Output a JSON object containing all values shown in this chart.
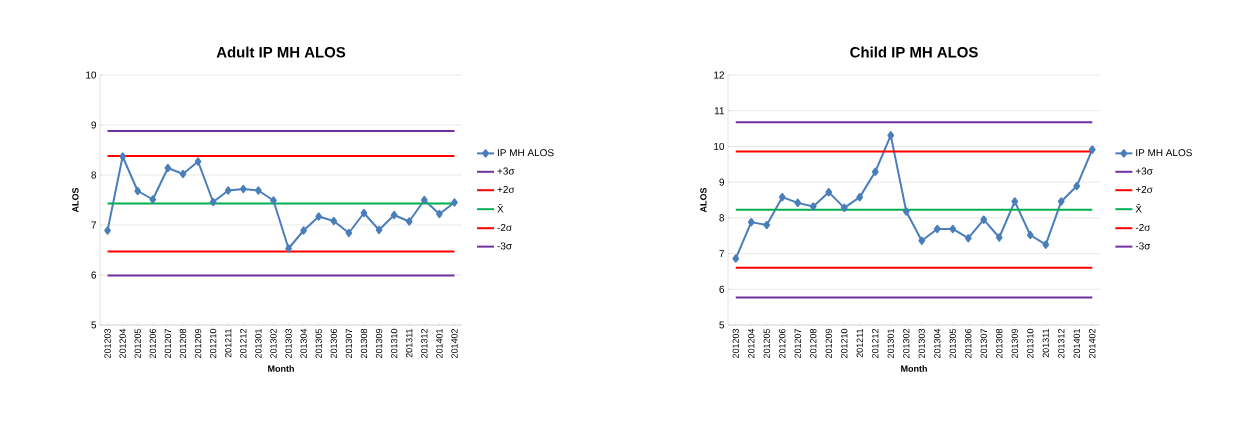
{
  "chart_data": [
    {
      "type": "line",
      "title": "Adult IP MH ALOS",
      "xlabel": "Month",
      "ylabel": "ALOS",
      "categories": [
        "201203",
        "201204",
        "201205",
        "201206",
        "201207",
        "201208",
        "201209",
        "201210",
        "201211",
        "201212",
        "201301",
        "201302",
        "201303",
        "201304",
        "201305",
        "201306",
        "201307",
        "201308",
        "201309",
        "201310",
        "201311",
        "201312",
        "201401",
        "201402"
      ],
      "ylim": [
        5,
        10
      ],
      "yticks": [
        5,
        6,
        7,
        8,
        9,
        10
      ],
      "grid": "y",
      "legend": "right",
      "series": [
        {
          "name": "IP MH ALOS",
          "color": "#4a7ebb",
          "marker": "diamond",
          "values": [
            6.89,
            8.37,
            7.68,
            7.51,
            8.14,
            8.02,
            8.27,
            7.46,
            7.69,
            7.72,
            7.69,
            7.49,
            6.53,
            6.89,
            7.17,
            7.08,
            6.84,
            7.24,
            6.9,
            7.2,
            7.07,
            7.5,
            7.22,
            7.45
          ]
        },
        {
          "name": "+3σ",
          "color": "#7030a0",
          "marker": "none",
          "values": [
            8.88,
            8.88,
            8.88,
            8.88,
            8.88,
            8.88,
            8.88,
            8.88,
            8.88,
            8.88,
            8.88,
            8.88,
            8.88,
            8.88,
            8.88,
            8.88,
            8.88,
            8.88,
            8.88,
            8.88,
            8.88,
            8.88,
            8.88,
            8.88
          ]
        },
        {
          "name": "+2σ",
          "color": "#ff0000",
          "marker": "none",
          "values": [
            8.38,
            8.38,
            8.38,
            8.38,
            8.38,
            8.38,
            8.38,
            8.38,
            8.38,
            8.38,
            8.38,
            8.38,
            8.38,
            8.38,
            8.38,
            8.38,
            8.38,
            8.38,
            8.38,
            8.38,
            8.38,
            8.38,
            8.38,
            8.38
          ]
        },
        {
          "name": "X̄",
          "color": "#00b050",
          "marker": "none",
          "values": [
            7.43,
            7.43,
            7.43,
            7.43,
            7.43,
            7.43,
            7.43,
            7.43,
            7.43,
            7.43,
            7.43,
            7.43,
            7.43,
            7.43,
            7.43,
            7.43,
            7.43,
            7.43,
            7.43,
            7.43,
            7.43,
            7.43,
            7.43,
            7.43
          ]
        },
        {
          "name": "-2σ",
          "color": "#ff0000",
          "marker": "none",
          "values": [
            6.47,
            6.47,
            6.47,
            6.47,
            6.47,
            6.47,
            6.47,
            6.47,
            6.47,
            6.47,
            6.47,
            6.47,
            6.47,
            6.47,
            6.47,
            6.47,
            6.47,
            6.47,
            6.47,
            6.47,
            6.47,
            6.47,
            6.47,
            6.47
          ]
        },
        {
          "name": "-3σ",
          "color": "#7030a0",
          "marker": "none",
          "values": [
            5.99,
            5.99,
            5.99,
            5.99,
            5.99,
            5.99,
            5.99,
            5.99,
            5.99,
            5.99,
            5.99,
            5.99,
            5.99,
            5.99,
            5.99,
            5.99,
            5.99,
            5.99,
            5.99,
            5.99,
            5.99,
            5.99,
            5.99,
            5.99
          ]
        }
      ]
    },
    {
      "type": "line",
      "title": "Child IP MH ALOS",
      "xlabel": "Month",
      "ylabel": "ALOS",
      "categories": [
        "201203",
        "201204",
        "201205",
        "201206",
        "201207",
        "201208",
        "201209",
        "201210",
        "201211",
        "201212",
        "201301",
        "201302",
        "201303",
        "201304",
        "201305",
        "201306",
        "201307",
        "201308",
        "201309",
        "201310",
        "201311",
        "201312",
        "201401",
        "201402"
      ],
      "ylim": [
        5,
        12
      ],
      "yticks": [
        5,
        6,
        7,
        8,
        9,
        10,
        11,
        12
      ],
      "grid": "y",
      "legend": "right",
      "series": [
        {
          "name": "IP MH ALOS",
          "color": "#4a7ebb",
          "marker": "diamond",
          "values": [
            6.86,
            7.88,
            7.8,
            8.58,
            8.42,
            8.32,
            8.72,
            8.28,
            8.58,
            9.29,
            10.31,
            8.18,
            7.36,
            7.69,
            7.69,
            7.43,
            7.95,
            7.45,
            8.46,
            7.52,
            7.25,
            8.46,
            8.89,
            9.91
          ]
        },
        {
          "name": "+3σ",
          "color": "#7030a0",
          "marker": "none",
          "values": [
            10.68,
            10.68,
            10.68,
            10.68,
            10.68,
            10.68,
            10.68,
            10.68,
            10.68,
            10.68,
            10.68,
            10.68,
            10.68,
            10.68,
            10.68,
            10.68,
            10.68,
            10.68,
            10.68,
            10.68,
            10.68,
            10.68,
            10.68,
            10.68
          ]
        },
        {
          "name": "+2σ",
          "color": "#ff0000",
          "marker": "none",
          "values": [
            9.86,
            9.86,
            9.86,
            9.86,
            9.86,
            9.86,
            9.86,
            9.86,
            9.86,
            9.86,
            9.86,
            9.86,
            9.86,
            9.86,
            9.86,
            9.86,
            9.86,
            9.86,
            9.86,
            9.86,
            9.86,
            9.86,
            9.86,
            9.86
          ]
        },
        {
          "name": "X̄",
          "color": "#00b050",
          "marker": "none",
          "values": [
            8.23,
            8.23,
            8.23,
            8.23,
            8.23,
            8.23,
            8.23,
            8.23,
            8.23,
            8.23,
            8.23,
            8.23,
            8.23,
            8.23,
            8.23,
            8.23,
            8.23,
            8.23,
            8.23,
            8.23,
            8.23,
            8.23,
            8.23,
            8.23
          ]
        },
        {
          "name": "-2σ",
          "color": "#ff0000",
          "marker": "none",
          "values": [
            6.6,
            6.6,
            6.6,
            6.6,
            6.6,
            6.6,
            6.6,
            6.6,
            6.6,
            6.6,
            6.6,
            6.6,
            6.6,
            6.6,
            6.6,
            6.6,
            6.6,
            6.6,
            6.6,
            6.6,
            6.6,
            6.6,
            6.6,
            6.6
          ]
        },
        {
          "name": "-3σ",
          "color": "#7030a0",
          "marker": "none",
          "values": [
            5.77,
            5.77,
            5.77,
            5.77,
            5.77,
            5.77,
            5.77,
            5.77,
            5.77,
            5.77,
            5.77,
            5.77,
            5.77,
            5.77,
            5.77,
            5.77,
            5.77,
            5.77,
            5.77,
            5.77,
            5.77,
            5.77,
            5.77,
            5.77
          ]
        }
      ]
    }
  ]
}
